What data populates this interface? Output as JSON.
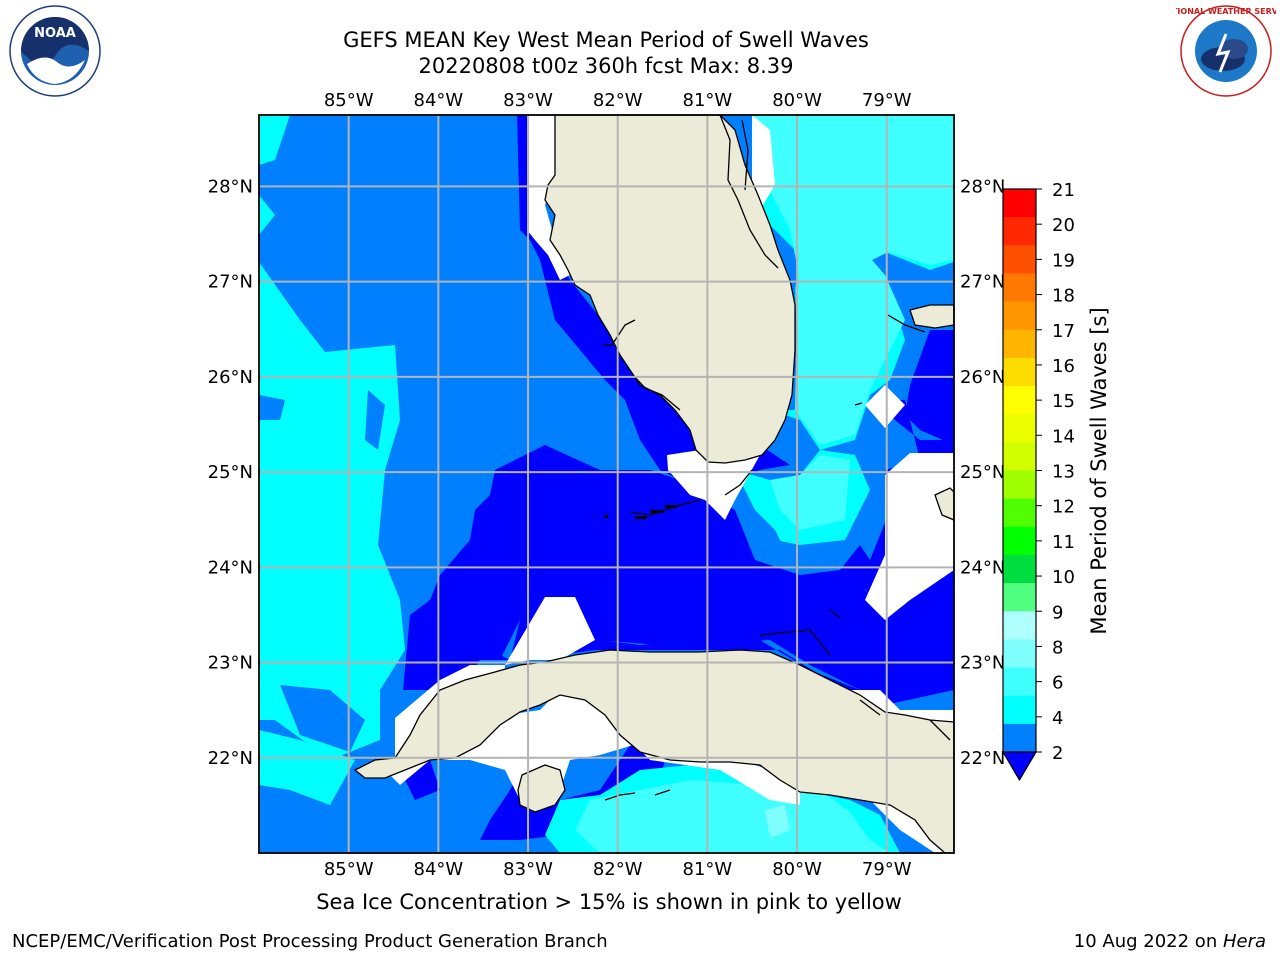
{
  "title": {
    "line1": "GEFS MEAN Key West Mean Period of Swell Waves",
    "line2": "20220808 t00z 360h fcst   Max: 8.39"
  },
  "map": {
    "lon_labels": [
      "85°W",
      "84°W",
      "83°W",
      "82°W",
      "81°W",
      "80°W",
      "79°W"
    ],
    "lat_labels": [
      "28°N",
      "27°N",
      "26°N",
      "25°N",
      "24°N",
      "23°N",
      "22°N"
    ],
    "lon_range": [
      -86.0,
      -78.25
    ],
    "lat_range": [
      21.0,
      28.75
    ],
    "grid": true,
    "colors": {
      "land": "#ecebd8",
      "band_2_4": "#0080ff",
      "band_lt_2": "#0000ff",
      "band_4_6": "#00ffff",
      "band_6_8": "#40ffff",
      "band_8_9": "#80ffff",
      "grid": "#b4b4b4",
      "coast": "#000000"
    }
  },
  "colorbar": {
    "label": "Mean Period of Swell Waves [s]",
    "ticks": [
      "21",
      "20",
      "19",
      "18",
      "17",
      "16",
      "15",
      "14",
      "13",
      "12",
      "11",
      "10",
      "9",
      "8",
      "6",
      "4",
      "2"
    ],
    "colors": [
      "#ff0000",
      "#ff2800",
      "#ff5000",
      "#ff7800",
      "#ff9600",
      "#ffb400",
      "#ffdc00",
      "#ffff00",
      "#ecff00",
      "#d2ff00",
      "#a0ff00",
      "#50ff00",
      "#00ff00",
      "#00dd40",
      "#50ff80",
      "#b0ffff",
      "#80ffff",
      "#40ffff",
      "#00ffff",
      "#0080ff"
    ],
    "extend_color": "#0000ff"
  },
  "note": "Sea Ice Concentration > 15% is shown in pink to yellow",
  "footer": {
    "left": "NCEP/EMC/Verification Post Processing Product Generation Branch",
    "right_prefix": "10 Aug 2022 on ",
    "right_host": "Hera"
  },
  "logos": {
    "noaa_text": "NOAA",
    "nws_text": "NATIONAL WEATHER SERVICE"
  }
}
